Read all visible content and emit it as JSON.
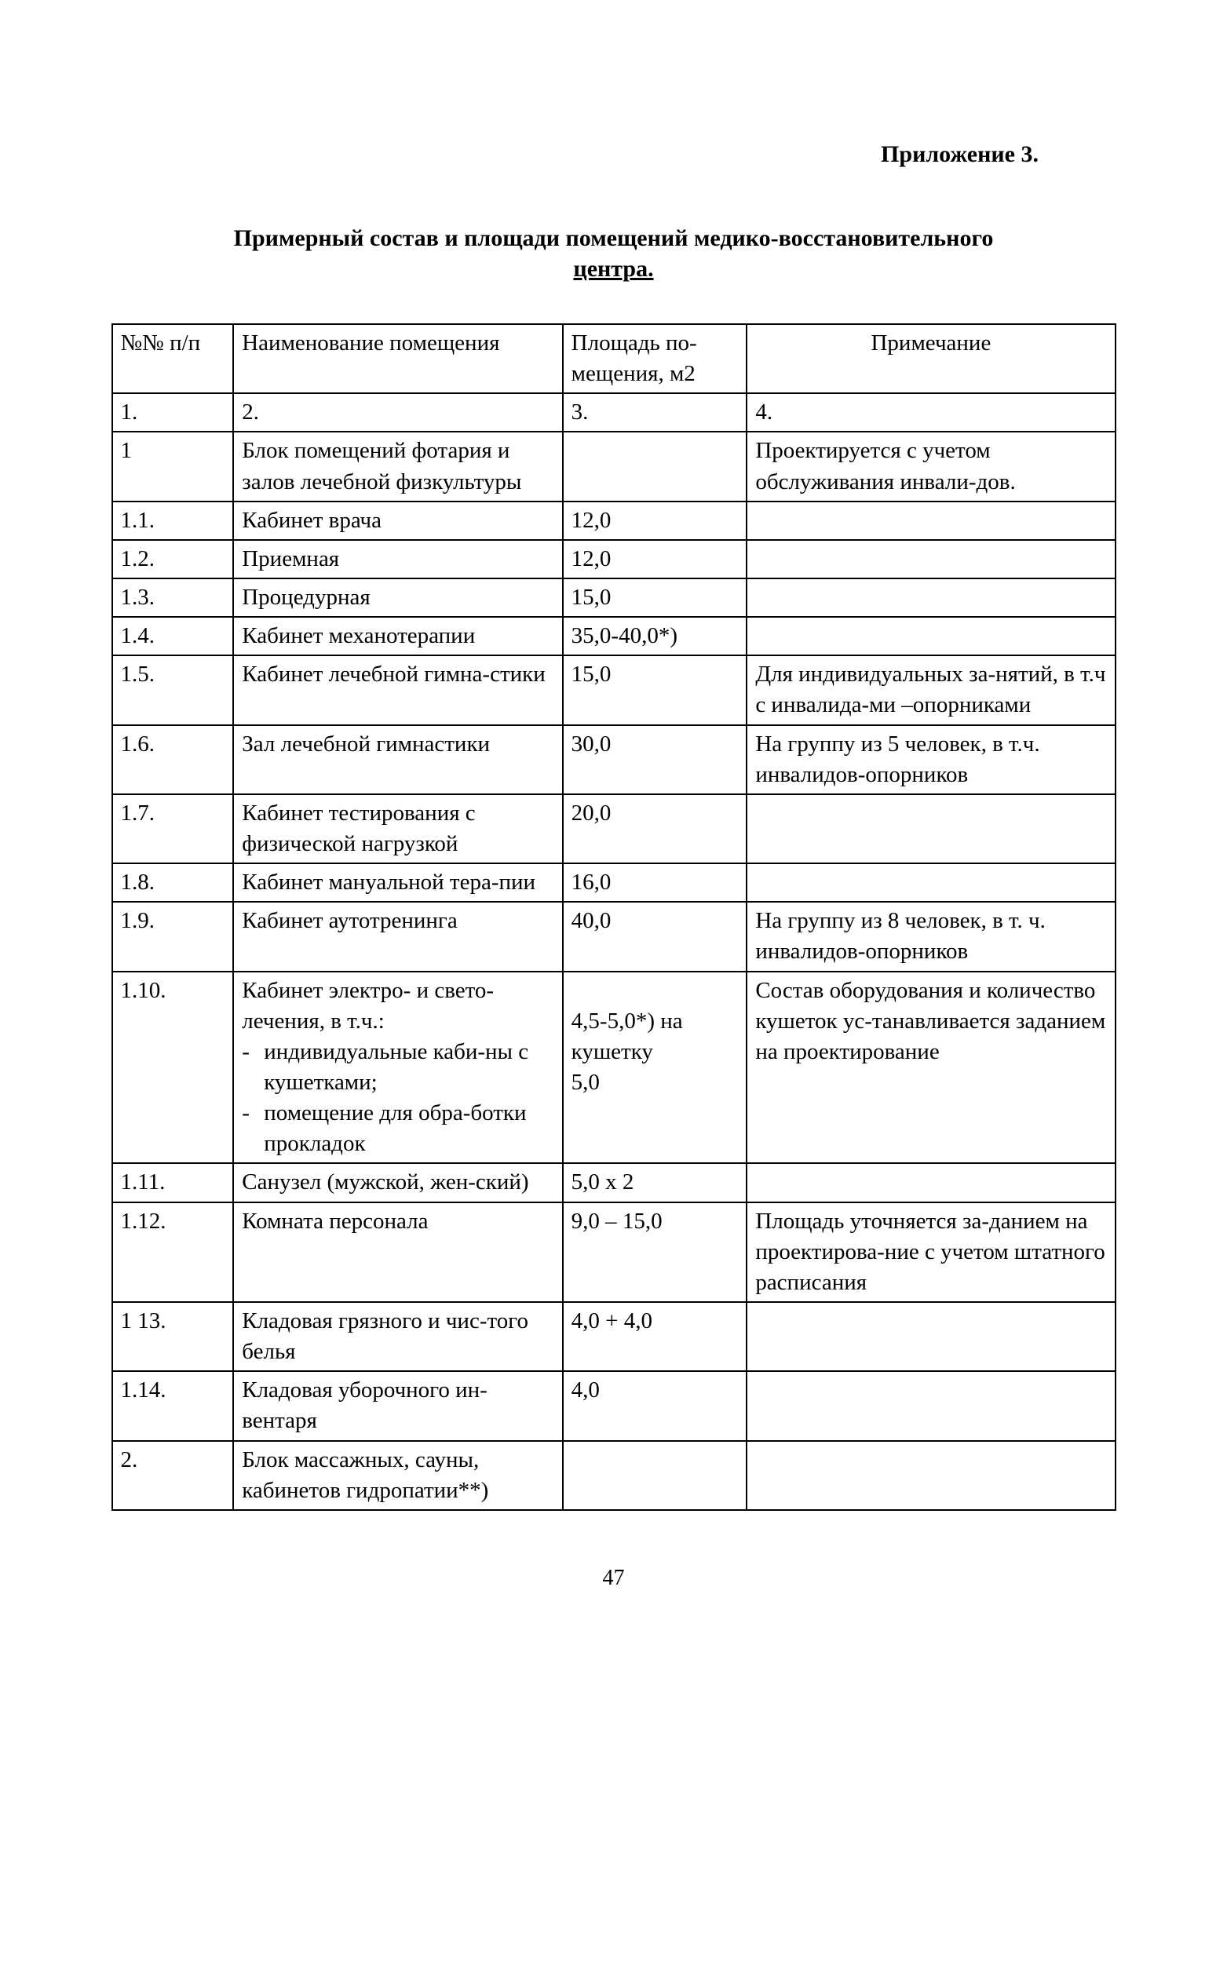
{
  "appendixLabel": "Приложение 3.",
  "titleLine1": "Примерный состав и площади помещений медико-восстановительного",
  "titleLine2Underlined": "центра.",
  "colHeaders": {
    "num": "№№ п/п",
    "name": "Наименование помещения",
    "area": "Площадь по-мещения, м2",
    "note": "Примечание"
  },
  "colNumbers": {
    "c1": "1.",
    "c2": "2.",
    "c3": "3.",
    "c4": "4."
  },
  "rows": [
    {
      "num": "1",
      "name": "Блок помещений фотария и залов лечебной физкультуры",
      "area": "",
      "note": "Проектируется с учетом обслуживания инвали-дов."
    },
    {
      "num": "1.1.",
      "name": "Кабинет врача",
      "area": "12,0",
      "note": ""
    },
    {
      "num": "1.2.",
      "name": "Приемная",
      "area": "12,0",
      "note": ""
    },
    {
      "num": "1.3.",
      "name": "Процедурная",
      "area": "15,0",
      "note": ""
    },
    {
      "num": "1.4.",
      "name": "Кабинет механотерапии",
      "area": "35,0-40,0*)",
      "note": ""
    },
    {
      "num": "1.5.",
      "name": "Кабинет лечебной гимна-стики",
      "area": "15,0",
      "note": "Для индивидуальных за-нятий, в т.ч с инвалида-ми –опорниками"
    },
    {
      "num": "1.6.",
      "name": "Зал лечебной гимнастики",
      "area": "30,0",
      "note": "На группу из 5 человек, в т.ч. инвалидов-опорников"
    },
    {
      "num": "1.7.",
      "name": "Кабинет тестирования с физической нагрузкой",
      "area": "20,0",
      "note": ""
    },
    {
      "num": "1.8.",
      "name": "Кабинет мануальной тера-пии",
      "area": "16,0",
      "note": ""
    },
    {
      "num": "1.9.",
      "name": "Кабинет аутотренинга",
      "area": "40,0",
      "note": "На группу из 8 человек, в т. ч. инвалидов-опорников"
    },
    {
      "num": "1.10.",
      "nameLead": "Кабинет электро- и свето-лечения, в т.ч.:",
      "nameItems": [
        "индивидуальные каби-ны с кушетками;",
        "помещение для обра-ботки прокладок"
      ],
      "areaLines": [
        "",
        "4,5-5,0*) на кушетку",
        "5,0"
      ],
      "note": "Состав оборудования и количество кушеток ус-танавливается заданием на проектирование",
      "complex": true
    },
    {
      "num": "1.11.",
      "name": "Санузел (мужской, жен-ский)",
      "area": "5,0 x 2",
      "note": ""
    },
    {
      "num": "1.12.",
      "name": "Комната персонала",
      "area": "9,0 – 15,0",
      "note": "Площадь уточняется за-данием на проектирова-ние с учетом штатного расписания"
    },
    {
      "num": "1 13.",
      "name": "Кладовая грязного и чис-того белья",
      "area": "4,0 + 4,0",
      "note": ""
    },
    {
      "num": "1.14.",
      "name": "Кладовая уборочного ин-вентаря",
      "area": "4,0",
      "note": ""
    },
    {
      "num": "2.",
      "name": "Блок массажных, сауны, кабинетов гидропатии**)",
      "area": "",
      "note": ""
    }
  ],
  "pageNumber": "47",
  "style": {
    "pageWidth": 1563,
    "pageHeight": 2533,
    "background": "#ffffff",
    "textColor": "#000000",
    "fontFamily": "Times New Roman",
    "bodyFontSize": 29,
    "titleFontSize": 30,
    "tableBorderColor": "#000000",
    "tableBorderWidth": 2,
    "columns": [
      {
        "key": "num",
        "widthPx": 155,
        "align": "left"
      },
      {
        "key": "name",
        "widthPx": 420,
        "align": "left"
      },
      {
        "key": "area",
        "widthPx": 235,
        "align": "left"
      },
      {
        "key": "note",
        "widthPx": 470,
        "align": "left"
      }
    ]
  }
}
